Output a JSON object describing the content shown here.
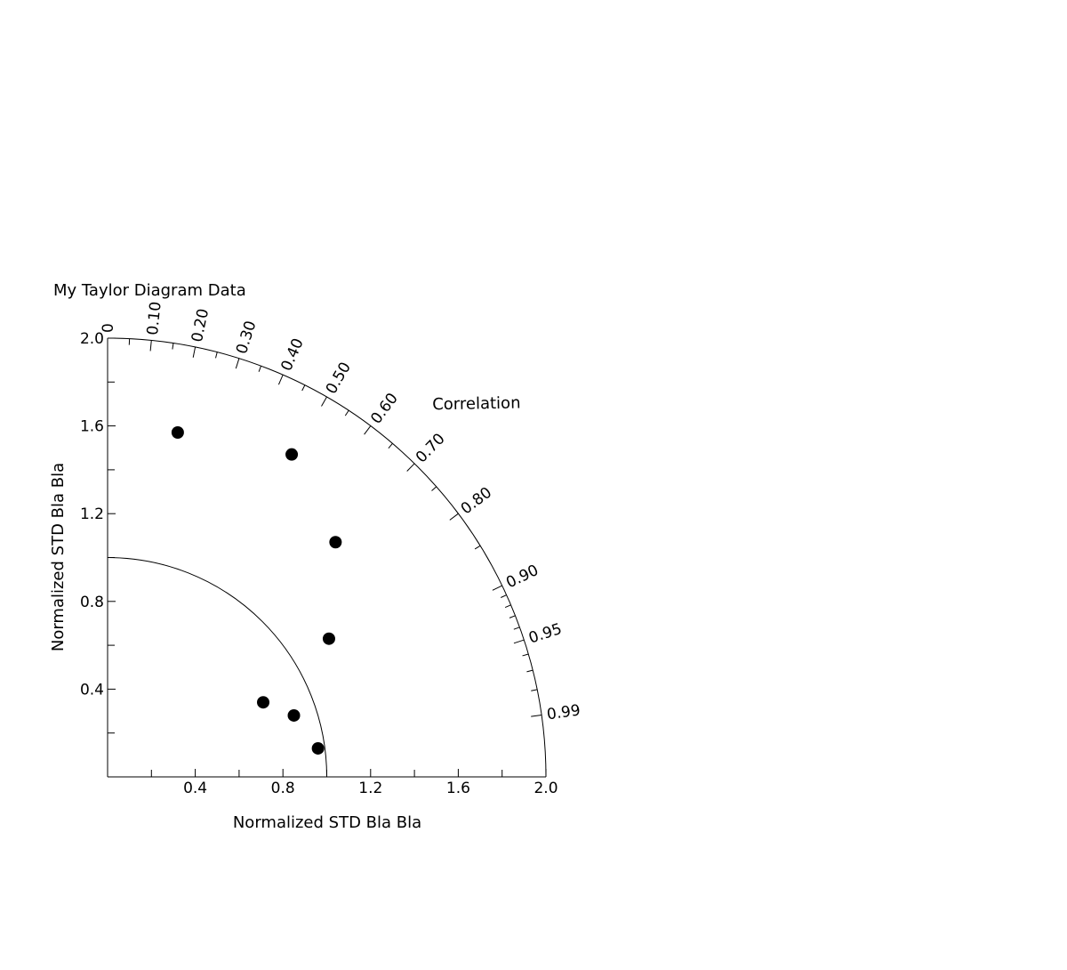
{
  "chart_data": {
    "type": "scatter",
    "subtype": "taylor-diagram",
    "title": "My Taylor Diagram Data",
    "xlabel": "Normalized STD Bla Bla",
    "ylabel": "Normalized STD Bla Bla",
    "angular_label": "Correlation",
    "xlim": [
      0,
      2.0
    ],
    "ylim": [
      0,
      2.0
    ],
    "x_ticks": [
      0.4,
      0.8,
      1.2,
      1.6,
      2.0
    ],
    "x_tick_labels": [
      "0.4",
      "0.8",
      "1.2",
      "1.6",
      "2.0"
    ],
    "y_ticks": [
      0.4,
      0.8,
      1.2,
      1.6,
      2.0
    ],
    "y_tick_labels": [
      "0.4",
      "0.8",
      "1.2",
      "1.6",
      "2.0"
    ],
    "minor_tick_step": 0.2,
    "correlation_ticks": [
      0,
      0.1,
      0.2,
      0.3,
      0.4,
      0.5,
      0.6,
      0.7,
      0.8,
      0.9,
      0.95,
      0.99
    ],
    "correlation_tick_labels": [
      "0",
      "0.10",
      "0.20",
      "0.30",
      "0.40",
      "0.50",
      "0.60",
      "0.70",
      "0.80",
      "0.90",
      "0.95",
      "0.99"
    ],
    "correlation_minor_ticks": [
      0.05,
      0.15,
      0.25,
      0.35,
      0.45,
      0.55,
      0.65,
      0.75,
      0.85,
      0.91,
      0.92,
      0.93,
      0.94,
      0.96,
      0.97,
      0.98
    ],
    "reference_std": 1.0,
    "grid": false,
    "point_color": "#000000",
    "points": [
      {
        "x": 0.32,
        "y": 1.57
      },
      {
        "x": 0.84,
        "y": 1.47
      },
      {
        "x": 1.04,
        "y": 1.07
      },
      {
        "x": 1.01,
        "y": 0.63
      },
      {
        "x": 0.71,
        "y": 0.34
      },
      {
        "x": 0.85,
        "y": 0.28
      },
      {
        "x": 0.96,
        "y": 0.13
      }
    ]
  }
}
